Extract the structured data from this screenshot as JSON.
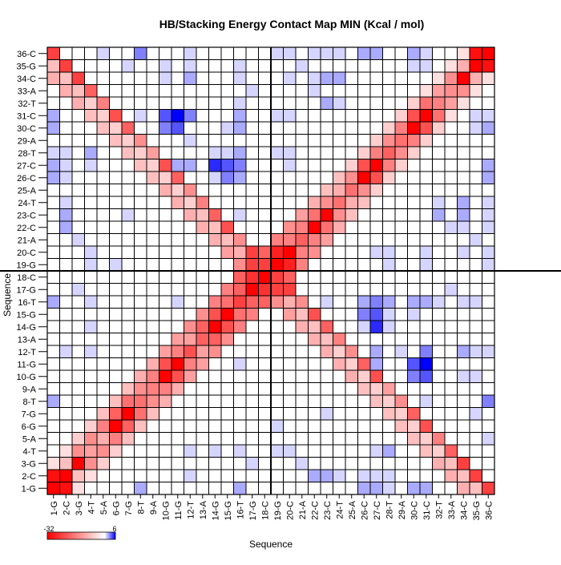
{
  "chart_data": {
    "type": "heatmap",
    "title": "HB/Stacking Energy Contact Map MIN (Kcal / mol)",
    "xlabel": "Sequence",
    "ylabel": "Sequence",
    "labels": [
      "1-G",
      "2-C",
      "3-G",
      "4-T",
      "5-A",
      "6-G",
      "7-G",
      "8-T",
      "9-A",
      "10-G",
      "11-G",
      "12-T",
      "13-A",
      "14-G",
      "15-G",
      "16-T",
      "17-G",
      "18-C",
      "19-G",
      "20-C",
      "21-A",
      "22-C",
      "23-C",
      "24-T",
      "25-A",
      "26-C",
      "27-C",
      "28-T",
      "29-A",
      "30-C",
      "31-C",
      "32-T",
      "33-A",
      "34-C",
      "35-G",
      "36-C"
    ],
    "value_range": [
      -32,
      6
    ],
    "colorbar": {
      "min_label": "-32",
      "max_label": "6",
      "colors": [
        "#ff0000",
        "#ffffff",
        "#0000ff"
      ]
    },
    "divider_after_index": 18,
    "cells": [
      [
        1,
        1,
        -32
      ],
      [
        2,
        2,
        -32
      ],
      [
        3,
        3,
        -32
      ],
      [
        4,
        4,
        -12
      ],
      [
        5,
        5,
        -10
      ],
      [
        6,
        6,
        -32
      ],
      [
        7,
        7,
        -32
      ],
      [
        8,
        8,
        -18
      ],
      [
        9,
        9,
        -16
      ],
      [
        10,
        10,
        -32
      ],
      [
        11,
        11,
        -32
      ],
      [
        12,
        12,
        -22
      ],
      [
        13,
        13,
        -20
      ],
      [
        14,
        14,
        -32
      ],
      [
        15,
        15,
        -32
      ],
      [
        16,
        16,
        -24
      ],
      [
        17,
        17,
        -32
      ],
      [
        18,
        18,
        -32
      ],
      [
        19,
        19,
        -32
      ],
      [
        20,
        20,
        -32
      ],
      [
        21,
        21,
        -20
      ],
      [
        22,
        22,
        -32
      ],
      [
        23,
        23,
        -32
      ],
      [
        24,
        24,
        -18
      ],
      [
        25,
        25,
        -18
      ],
      [
        26,
        26,
        -32
      ],
      [
        27,
        27,
        -32
      ],
      [
        28,
        28,
        -20
      ],
      [
        29,
        29,
        -18
      ],
      [
        30,
        30,
        -32
      ],
      [
        31,
        31,
        -32
      ],
      [
        32,
        32,
        -16
      ],
      [
        33,
        33,
        -14
      ],
      [
        34,
        34,
        -32
      ],
      [
        35,
        35,
        -32
      ],
      [
        36,
        36,
        -32
      ],
      [
        1,
        2,
        -30
      ],
      [
        2,
        3,
        -8
      ],
      [
        3,
        4,
        -14
      ],
      [
        4,
        5,
        -14
      ],
      [
        5,
        6,
        -16
      ],
      [
        6,
        7,
        -20
      ],
      [
        7,
        8,
        -18
      ],
      [
        8,
        9,
        -14
      ],
      [
        9,
        10,
        -16
      ],
      [
        10,
        11,
        -22
      ],
      [
        11,
        12,
        -16
      ],
      [
        12,
        13,
        -12
      ],
      [
        13,
        14,
        -20
      ],
      [
        14,
        15,
        -22
      ],
      [
        15,
        16,
        -18
      ],
      [
        16,
        17,
        -20
      ],
      [
        17,
        18,
        -26
      ],
      [
        18,
        19,
        -24
      ],
      [
        19,
        20,
        -28
      ],
      [
        20,
        21,
        -16
      ],
      [
        21,
        22,
        -16
      ],
      [
        22,
        23,
        -18
      ],
      [
        23,
        24,
        -14
      ],
      [
        24,
        25,
        -10
      ],
      [
        25,
        26,
        -14
      ],
      [
        26,
        27,
        -22
      ],
      [
        27,
        28,
        -16
      ],
      [
        28,
        29,
        -14
      ],
      [
        29,
        30,
        -16
      ],
      [
        30,
        31,
        -22
      ],
      [
        31,
        32,
        -18
      ],
      [
        32,
        33,
        -12
      ],
      [
        33,
        34,
        -14
      ],
      [
        34,
        35,
        -10
      ],
      [
        35,
        36,
        -30
      ],
      [
        1,
        3,
        -4
      ],
      [
        2,
        4,
        -4
      ],
      [
        3,
        5,
        -6
      ],
      [
        4,
        6,
        -6
      ],
      [
        5,
        7,
        -8
      ],
      [
        6,
        8,
        -8
      ],
      [
        7,
        9,
        -8
      ],
      [
        8,
        10,
        -10
      ],
      [
        9,
        11,
        -10
      ],
      [
        10,
        12,
        -12
      ],
      [
        11,
        13,
        -12
      ],
      [
        12,
        14,
        -14
      ],
      [
        13,
        15,
        -14
      ],
      [
        14,
        16,
        -16
      ],
      [
        15,
        17,
        -16
      ],
      [
        16,
        18,
        -20
      ],
      [
        17,
        19,
        -24
      ],
      [
        18,
        20,
        -20
      ],
      [
        19,
        21,
        -16
      ],
      [
        20,
        22,
        -14
      ],
      [
        21,
        23,
        -12
      ],
      [
        22,
        24,
        -10
      ],
      [
        23,
        25,
        -8
      ],
      [
        24,
        26,
        -8
      ],
      [
        25,
        27,
        -6
      ],
      [
        26,
        28,
        -6
      ],
      [
        27,
        29,
        -6
      ],
      [
        28,
        30,
        -6
      ],
      [
        29,
        31,
        -6
      ],
      [
        30,
        32,
        -6
      ],
      [
        31,
        33,
        -4
      ],
      [
        32,
        34,
        -4
      ],
      [
        33,
        35,
        -4
      ],
      [
        34,
        36,
        -4
      ],
      [
        1,
        36,
        -24
      ],
      [
        2,
        35,
        -24
      ],
      [
        3,
        34,
        -24
      ],
      [
        4,
        33,
        -20
      ],
      [
        5,
        32,
        -16
      ],
      [
        6,
        31,
        -22
      ],
      [
        7,
        30,
        -20
      ],
      [
        8,
        29,
        -14
      ],
      [
        9,
        28,
        -12
      ],
      [
        10,
        27,
        -22
      ],
      [
        11,
        26,
        -20
      ],
      [
        12,
        25,
        -14
      ],
      [
        13,
        24,
        -16
      ],
      [
        14,
        23,
        -20
      ],
      [
        15,
        22,
        -22
      ],
      [
        16,
        21,
        -14
      ],
      [
        17,
        20,
        -24
      ],
      [
        18,
        19,
        -28
      ],
      [
        1,
        34,
        -10
      ],
      [
        2,
        33,
        -10
      ],
      [
        3,
        32,
        -10
      ],
      [
        4,
        31,
        -8
      ],
      [
        5,
        30,
        -8
      ],
      [
        6,
        29,
        -8
      ],
      [
        7,
        28,
        -8
      ],
      [
        8,
        27,
        -8
      ],
      [
        9,
        26,
        -8
      ],
      [
        10,
        25,
        -10
      ],
      [
        11,
        24,
        -10
      ],
      [
        12,
        23,
        -10
      ],
      [
        13,
        22,
        -10
      ],
      [
        14,
        21,
        -10
      ],
      [
        15,
        20,
        -12
      ],
      [
        16,
        19,
        -14
      ],
      [
        17,
        18,
        -16
      ],
      [
        1,
        35,
        -8
      ],
      [
        2,
        34,
        -8
      ],
      [
        3,
        33,
        -8
      ],
      [
        4,
        32,
        -6
      ],
      [
        5,
        31,
        -6
      ],
      [
        6,
        30,
        -6
      ],
      [
        7,
        29,
        -6
      ],
      [
        8,
        28,
        -6
      ],
      [
        9,
        27,
        -6
      ],
      [
        10,
        26,
        -6
      ],
      [
        11,
        25,
        -6
      ],
      [
        12,
        24,
        -6
      ],
      [
        13,
        23,
        -8
      ],
      [
        14,
        22,
        -8
      ],
      [
        15,
        21,
        -8
      ],
      [
        16,
        20,
        -10
      ],
      [
        17,
        19,
        -12
      ],
      [
        1,
        8,
        2
      ],
      [
        1,
        16,
        2
      ],
      [
        1,
        26,
        2
      ],
      [
        1,
        27,
        2
      ],
      [
        1,
        30,
        2
      ],
      [
        1,
        31,
        2
      ],
      [
        2,
        12,
        1
      ],
      [
        2,
        22,
        2
      ],
      [
        2,
        23,
        2
      ],
      [
        2,
        24,
        1
      ],
      [
        2,
        27,
        1
      ],
      [
        2,
        28,
        1
      ],
      [
        3,
        17,
        1
      ],
      [
        3,
        21,
        1
      ],
      [
        4,
        12,
        1
      ],
      [
        4,
        14,
        1
      ],
      [
        4,
        16,
        1
      ],
      [
        4,
        28,
        2
      ],
      [
        6,
        19,
        1
      ],
      [
        6,
        30,
        1
      ],
      [
        7,
        23,
        1
      ],
      [
        7,
        28,
        1
      ],
      [
        7,
        35,
        1
      ],
      [
        8,
        28,
        1
      ],
      [
        8,
        31,
        1
      ],
      [
        8,
        36,
        3
      ],
      [
        10,
        31,
        4
      ],
      [
        10,
        30,
        3
      ],
      [
        10,
        35,
        1
      ],
      [
        11,
        27,
        2
      ],
      [
        11,
        30,
        4
      ],
      [
        11,
        31,
        6
      ],
      [
        11,
        16,
        1
      ],
      [
        11,
        10,
        1
      ],
      [
        12,
        4,
        1
      ],
      [
        12,
        14,
        1
      ],
      [
        12,
        27,
        2
      ],
      [
        12,
        29,
        1
      ],
      [
        12,
        31,
        3
      ],
      [
        12,
        34,
        2
      ],
      [
        12,
        36,
        1
      ],
      [
        14,
        23,
        1
      ],
      [
        14,
        26,
        1
      ],
      [
        14,
        27,
        5
      ],
      [
        14,
        28,
        1
      ],
      [
        15,
        22,
        1
      ],
      [
        15,
        27,
        4
      ],
      [
        15,
        28,
        1
      ],
      [
        15,
        30,
        1
      ],
      [
        16,
        28,
        2
      ],
      [
        16,
        30,
        2
      ],
      [
        16,
        31,
        2
      ],
      [
        16,
        32,
        1
      ],
      [
        16,
        34,
        1
      ],
      [
        17,
        20,
        1
      ],
      [
        17,
        33,
        1
      ],
      [
        19,
        4,
        1
      ],
      [
        19,
        28,
        1
      ],
      [
        19,
        31,
        1
      ],
      [
        19,
        36,
        1
      ],
      [
        20,
        4,
        1
      ],
      [
        20,
        27,
        1
      ],
      [
        20,
        28,
        1
      ],
      [
        20,
        31,
        1
      ],
      [
        20,
        34,
        1
      ],
      [
        20,
        36,
        1
      ],
      [
        22,
        14,
        1
      ],
      [
        22,
        33,
        1
      ],
      [
        22,
        36,
        1
      ],
      [
        23,
        14,
        1
      ],
      [
        23,
        16,
        1
      ],
      [
        23,
        32,
        2
      ],
      [
        23,
        34,
        2
      ],
      [
        23,
        36,
        1
      ],
      [
        24,
        36,
        1
      ],
      [
        26,
        2,
        1
      ],
      [
        26,
        14,
        2
      ],
      [
        26,
        15,
        3
      ],
      [
        26,
        16,
        2
      ],
      [
        26,
        36,
        2
      ],
      [
        27,
        2,
        1
      ],
      [
        27,
        4,
        1
      ],
      [
        27,
        14,
        5
      ],
      [
        27,
        15,
        3
      ],
      [
        27,
        16,
        3
      ],
      [
        27,
        36,
        2
      ],
      [
        28,
        1,
        1
      ],
      [
        28,
        4,
        2
      ],
      [
        28,
        16,
        2
      ],
      [
        30,
        1,
        1
      ],
      [
        30,
        10,
        6
      ],
      [
        30,
        11,
        3
      ],
      [
        31,
        10,
        6
      ],
      [
        31,
        11,
        3
      ],
      [
        31,
        12,
        2
      ],
      [
        31,
        16,
        2
      ],
      [
        32,
        23,
        2
      ],
      [
        32,
        24,
        1
      ],
      [
        32,
        31,
        1
      ],
      [
        34,
        10,
        1
      ],
      [
        34,
        12,
        2
      ],
      [
        34,
        16,
        1
      ],
      [
        34,
        22,
        1
      ],
      [
        34,
        23,
        2
      ],
      [
        34,
        24,
        2
      ],
      [
        35,
        12,
        1
      ],
      [
        35,
        16,
        1
      ],
      [
        35,
        21,
        1
      ],
      [
        35,
        30,
        1
      ],
      [
        35,
        31,
        1
      ],
      [
        36,
        5,
        1
      ],
      [
        36,
        8,
        3
      ],
      [
        36,
        26,
        2
      ],
      [
        36,
        27,
        2
      ],
      [
        36,
        30,
        2
      ],
      [
        36,
        31,
        1
      ]
    ]
  }
}
